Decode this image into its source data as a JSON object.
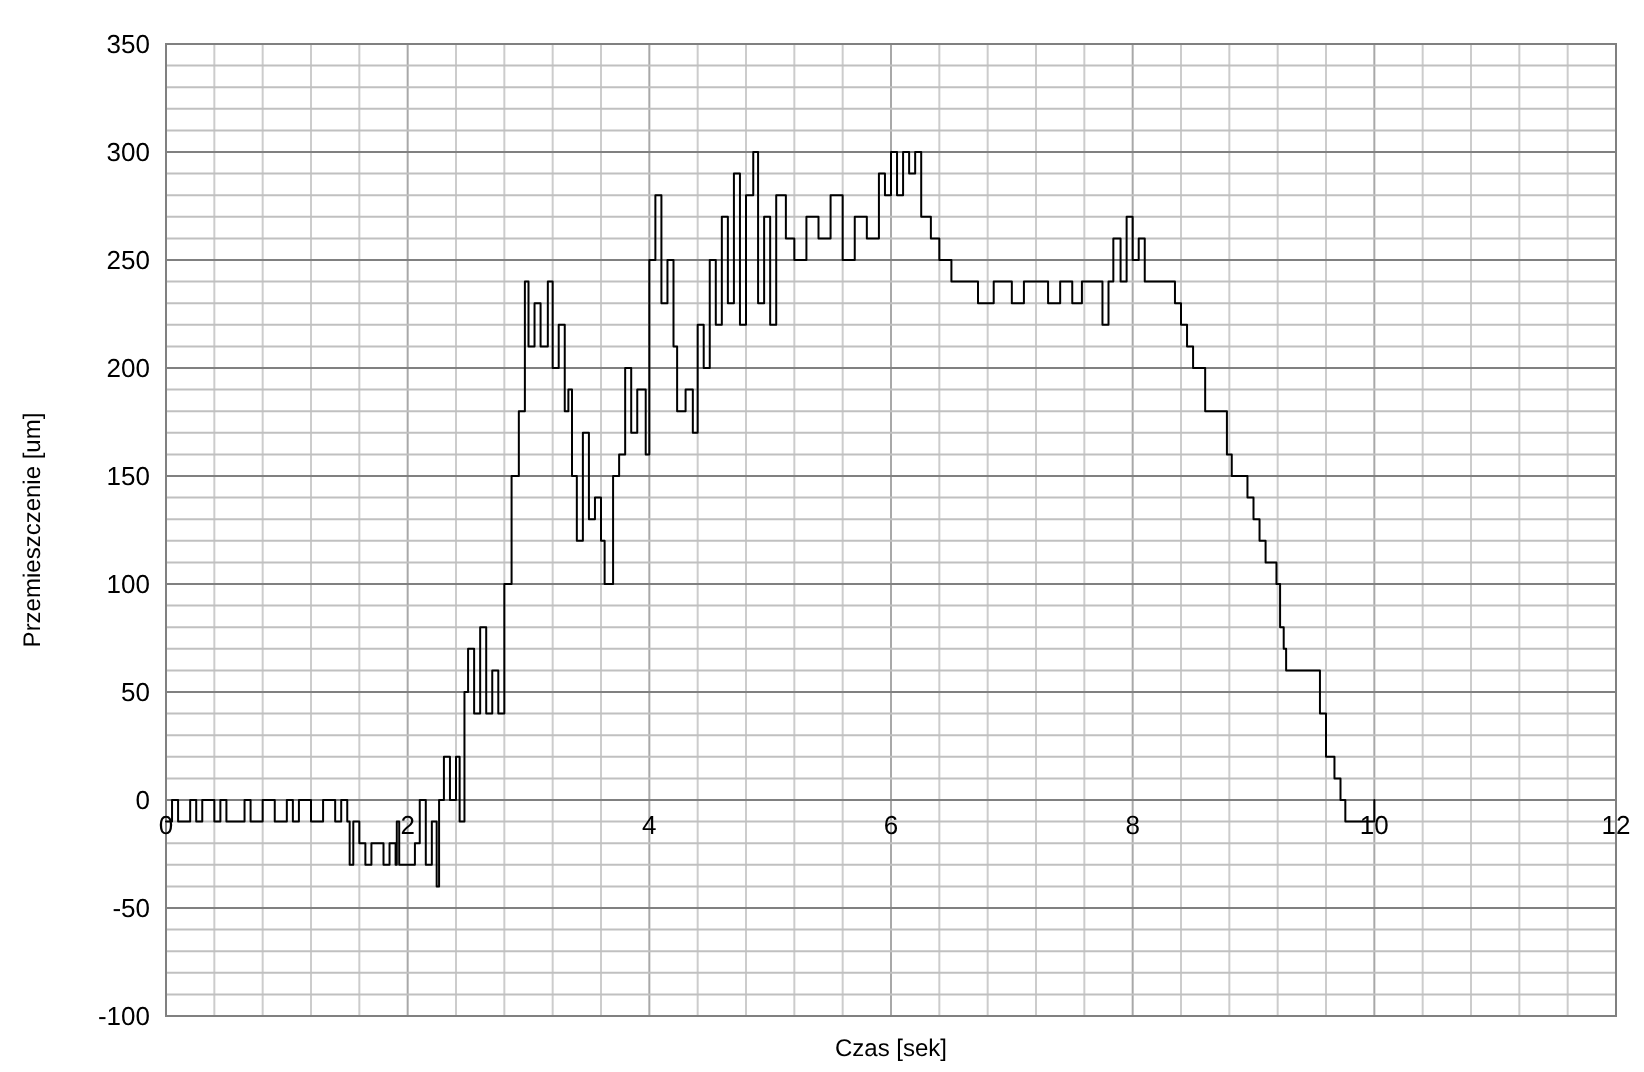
{
  "chart_data": {
    "type": "step",
    "xlabel": "Czas [sek]",
    "ylabel": "Przemieszczenie [um]",
    "xlim": [
      0,
      12
    ],
    "ylim": [
      -100,
      350
    ],
    "xticks": [
      0,
      {
        "value": 0.4,
        "label": null
      },
      {
        "value": 0.8,
        "label": null
      },
      {
        "value": 1.2,
        "label": null
      },
      {
        "value": 1.6,
        "label": null
      },
      2,
      {
        "value": 2.4,
        "label": null
      },
      {
        "value": 2.8,
        "label": null
      },
      {
        "value": 3.2,
        "label": null
      },
      {
        "value": 3.6,
        "label": null
      },
      4,
      {
        "value": 4.4,
        "label": null
      },
      {
        "value": 4.8,
        "label": null
      },
      {
        "value": 5.2,
        "label": null
      },
      {
        "value": 5.6,
        "label": null
      },
      6,
      {
        "value": 6.4,
        "label": null
      },
      {
        "value": 6.8,
        "label": null
      },
      {
        "value": 7.2,
        "label": null
      },
      {
        "value": 7.6,
        "label": null
      },
      8,
      {
        "value": 8.4,
        "label": null
      },
      {
        "value": 8.8,
        "label": null
      },
      {
        "value": 9.2,
        "label": null
      },
      {
        "value": 9.6,
        "label": null
      },
      10,
      {
        "value": 10.4,
        "label": null
      },
      {
        "value": 10.8,
        "label": null
      },
      {
        "value": 11.2,
        "label": null
      },
      {
        "value": 11.6,
        "label": null
      },
      12
    ],
    "yticks": [
      -100,
      {
        "value": -90,
        "label": null
      },
      {
        "value": -80,
        "label": null
      },
      {
        "value": -70,
        "label": null
      },
      {
        "value": -60,
        "label": null
      },
      -50,
      {
        "value": -40,
        "label": null
      },
      {
        "value": -30,
        "label": null
      },
      {
        "value": -20,
        "label": null
      },
      {
        "value": -10,
        "label": null
      },
      0,
      {
        "value": 10,
        "label": null
      },
      {
        "value": 20,
        "label": null
      },
      {
        "value": 30,
        "label": null
      },
      {
        "value": 40,
        "label": null
      },
      50,
      {
        "value": 60,
        "label": null
      },
      {
        "value": 70,
        "label": null
      },
      {
        "value": 80,
        "label": null
      },
      {
        "value": 90,
        "label": null
      },
      100,
      {
        "value": 110,
        "label": null
      },
      {
        "value": 120,
        "label": null
      },
      {
        "value": 130,
        "label": null
      },
      {
        "value": 140,
        "label": null
      },
      150,
      {
        "value": 160,
        "label": null
      },
      {
        "value": 170,
        "label": null
      },
      {
        "value": 180,
        "label": null
      },
      {
        "value": 190,
        "label": null
      },
      200,
      {
        "value": 210,
        "label": null
      },
      {
        "value": 220,
        "label": null
      },
      {
        "value": 230,
        "label": null
      },
      {
        "value": 240,
        "label": null
      },
      250,
      {
        "value": 260,
        "label": null
      },
      {
        "value": 270,
        "label": null
      },
      {
        "value": 280,
        "label": null
      },
      {
        "value": 290,
        "label": null
      },
      300,
      {
        "value": 310,
        "label": null
      },
      {
        "value": 320,
        "label": null
      },
      {
        "value": 330,
        "label": null
      },
      {
        "value": 340,
        "label": null
      },
      350
    ],
    "grid": true,
    "marker": "none",
    "line_style": "solid",
    "series": [
      {
        "color": "#000000",
        "x": [
          0,
          0.05,
          0.1,
          0.2,
          0.25,
          0.3,
          0.4,
          0.45,
          0.5,
          0.6,
          0.65,
          0.7,
          0.8,
          0.9,
          1.0,
          1.05,
          1.1,
          1.2,
          1.3,
          1.4,
          1.45,
          1.5,
          1.52,
          1.55,
          1.6,
          1.65,
          1.7,
          1.8,
          1.85,
          1.9,
          1.91,
          1.93,
          2.06,
          2.1,
          2.15,
          2.2,
          2.24,
          2.26,
          2.3,
          2.35,
          2.4,
          2.43,
          2.47,
          2.5,
          2.55,
          2.6,
          2.65,
          2.7,
          2.75,
          2.8,
          2.86,
          2.92,
          2.97,
          3.0,
          3.05,
          3.1,
          3.16,
          3.2,
          3.25,
          3.3,
          3.33,
          3.36,
          3.4,
          3.45,
          3.5,
          3.55,
          3.6,
          3.63,
          3.7,
          3.75,
          3.8,
          3.85,
          3.9,
          3.97,
          4.0,
          4.05,
          4.1,
          4.15,
          4.2,
          4.23,
          4.3,
          4.36,
          4.4,
          4.45,
          4.5,
          4.55,
          4.6,
          4.65,
          4.7,
          4.75,
          4.8,
          4.86,
          4.9,
          4.95,
          5.0,
          5.05,
          5.13,
          5.2,
          5.3,
          5.4,
          5.5,
          5.6,
          5.7,
          5.8,
          5.9,
          5.95,
          6.0,
          6.05,
          6.1,
          6.15,
          6.2,
          6.25,
          6.33,
          6.4,
          6.5,
          6.6,
          6.72,
          6.85,
          7.0,
          7.1,
          7.2,
          7.3,
          7.4,
          7.5,
          7.58,
          7.75,
          7.8,
          7.84,
          7.9,
          7.95,
          8.0,
          8.05,
          8.1,
          8.14,
          8.35,
          8.4,
          8.45,
          8.5,
          8.6,
          8.65,
          8.78,
          8.82,
          8.87,
          8.95,
          9.0,
          9.05,
          9.1,
          9.19,
          9.22,
          9.25,
          9.27,
          9.55,
          9.6,
          9.67,
          9.72,
          9.76,
          9.98,
          10.0
        ],
        "values": [
          -10,
          0,
          -10,
          0,
          -10,
          0,
          -10,
          0,
          -10,
          -10,
          0,
          -10,
          0,
          -10,
          0,
          -10,
          0,
          -10,
          0,
          -10,
          0,
          -10,
          -30,
          -10,
          -20,
          -30,
          -20,
          -30,
          -20,
          -30,
          -10,
          -30,
          -20,
          0,
          -30,
          -10,
          -40,
          0,
          20,
          0,
          20,
          -10,
          50,
          70,
          40,
          80,
          40,
          60,
          40,
          100,
          150,
          180,
          240,
          210,
          230,
          210,
          240,
          200,
          220,
          180,
          190,
          150,
          120,
          170,
          130,
          140,
          120,
          100,
          150,
          160,
          200,
          170,
          190,
          160,
          250,
          280,
          230,
          250,
          210,
          180,
          190,
          170,
          220,
          200,
          250,
          220,
          270,
          230,
          290,
          220,
          280,
          300,
          230,
          270,
          220,
          280,
          260,
          250,
          270,
          260,
          280,
          250,
          270,
          260,
          290,
          280,
          300,
          280,
          300,
          290,
          300,
          270,
          260,
          250,
          240,
          240,
          230,
          240,
          230,
          240,
          240,
          230,
          240,
          230,
          240,
          220,
          240,
          260,
          240,
          270,
          250,
          260,
          240,
          240,
          230,
          220,
          210,
          200,
          180,
          180,
          160,
          150,
          150,
          140,
          130,
          120,
          110,
          100,
          80,
          70,
          60,
          40,
          20,
          10,
          0,
          -10,
          -10,
          0
        ]
      }
    ]
  }
}
